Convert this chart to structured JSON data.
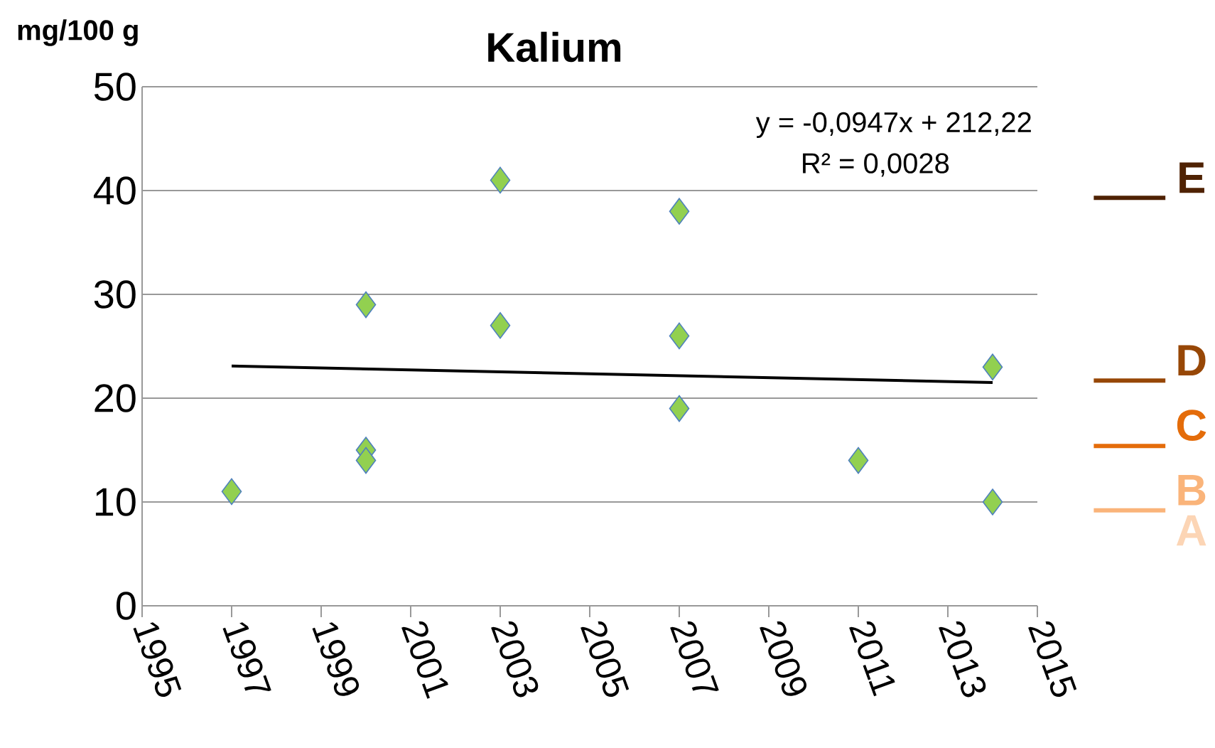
{
  "chart_data": {
    "type": "scatter",
    "title": "Kalium",
    "ylabel": "mg/100 g",
    "xlim": [
      1995,
      2015
    ],
    "xticks": [
      1995,
      1997,
      1999,
      2001,
      2003,
      2005,
      2007,
      2009,
      2011,
      2013,
      2015
    ],
    "ylim": [
      0,
      50
    ],
    "yticks": [
      0,
      10,
      20,
      30,
      40,
      50
    ],
    "grid": "y",
    "series": [
      {
        "color": "#92d050",
        "marker": "diamond",
        "x": [
          1997,
          2000,
          2000,
          2000,
          2003,
          2003,
          2007,
          2007,
          2007,
          2011,
          2014,
          2014
        ],
        "values": [
          11,
          29,
          15,
          14,
          41,
          27,
          38,
          26,
          19,
          14,
          23,
          10
        ]
      },
      {
        "type": "line",
        "marker": "none",
        "color": "#000000",
        "x": [
          1997,
          2014
        ],
        "values": [
          23.1,
          21.5
        ]
      }
    ],
    "ref_lines": [
      {
        "axis": "y",
        "value": 9.2,
        "label": "B",
        "color": "#fab47a"
      },
      {
        "axis": "y",
        "value": 15.4,
        "label": "C",
        "color": "#e46c0a"
      },
      {
        "axis": "y",
        "value": 21.7,
        "label": "D",
        "color": "#974706"
      },
      {
        "axis": "y",
        "value": 39.3,
        "label": "E",
        "color": "#4f2203"
      }
    ],
    "annotations": [
      "y = -0,0947x + 212,22",
      "R² = 0,0028",
      "A"
    ]
  }
}
